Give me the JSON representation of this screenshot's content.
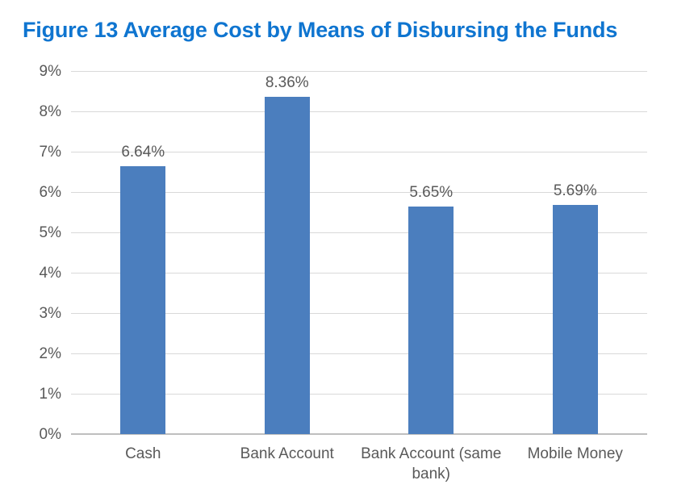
{
  "title": "Figure 13 Average Cost by Means of Disbursing the Funds",
  "colors": {
    "title": "#0F75D0",
    "bar": "#4B7EBE",
    "text": "#595959",
    "gridline": "#D9D9D9",
    "axis_line": "#BFBFBF",
    "background": "#FFFFFF"
  },
  "chart_data": {
    "type": "bar",
    "title": "Figure 13 Average Cost by Means of Disbursing the Funds",
    "categories": [
      "Cash",
      "Bank Account",
      "Bank Account (same bank)",
      "Mobile Money"
    ],
    "values": [
      6.64,
      8.36,
      5.65,
      5.69
    ],
    "data_labels": [
      "6.64%",
      "8.36%",
      "5.65%",
      "5.69%"
    ],
    "xlabel": "",
    "ylabel": "",
    "ylim": [
      0,
      9
    ],
    "ytick_step": 1,
    "ytick_labels": [
      "0%",
      "1%",
      "2%",
      "3%",
      "4%",
      "5%",
      "6%",
      "7%",
      "8%",
      "9%"
    ],
    "grid": true,
    "legend_position": "none",
    "bar_color": "#4B7EBE"
  }
}
